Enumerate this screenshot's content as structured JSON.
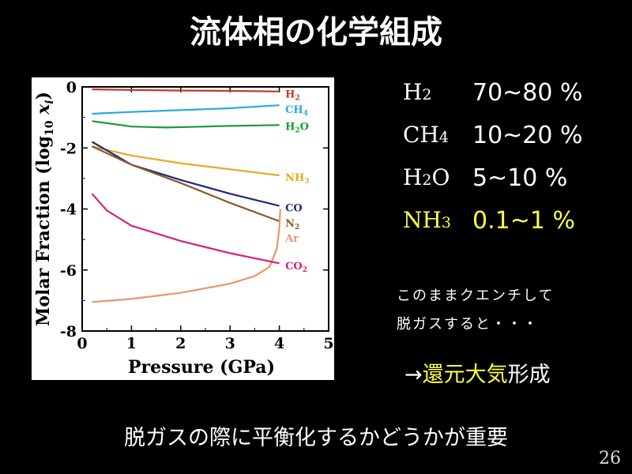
{
  "slide": {
    "title": "流体相の化学組成",
    "page_number": "26"
  },
  "composition": [
    {
      "base": "H",
      "sub": "2",
      "tail": "",
      "value": "70~80 %",
      "highlight": false
    },
    {
      "base": "CH",
      "sub": "4",
      "tail": "",
      "value": "10~20 %",
      "highlight": false
    },
    {
      "base": "H",
      "sub": "2",
      "tail": "O",
      "value": "5~10 %",
      "highlight": false
    },
    {
      "base": "NH",
      "sub": "3",
      "tail": "",
      "value": "0.1~1 %",
      "highlight": true
    }
  ],
  "notes": {
    "line1": "このままクエンチして",
    "line2": "脱ガスすると・・・"
  },
  "conclusion": {
    "arrow": "→",
    "highlight": "還元大気",
    "rest": "形成"
  },
  "bottom_text": "脱ガスの際に平衡化するかどうかが重要",
  "chart_data": {
    "type": "line",
    "xlabel": "Pressure (GPa)",
    "ylabel_main": "Molar Fraction (log",
    "ylabel_sub": "10",
    "ylabel_var": "x",
    "ylabel_var_sub": "i",
    "ylabel_close": ")",
    "xlim": [
      0,
      5
    ],
    "ylim": [
      -8,
      0
    ],
    "x_ticks": [
      0,
      1,
      2,
      3,
      4,
      5
    ],
    "x_tick_labels": [
      "0",
      "1",
      "2",
      "3",
      "4",
      "5"
    ],
    "y_ticks": [
      0,
      -2,
      -4,
      -6,
      -8
    ],
    "y_tick_labels": [
      "0",
      "-2",
      "-4",
      "-6",
      "-8"
    ],
    "series": [
      {
        "label_base": "H",
        "label_sub": "2",
        "label_tail": "",
        "color": "#c0392b",
        "points": [
          [
            0.2,
            -0.08
          ],
          [
            1,
            -0.1
          ],
          [
            2,
            -0.12
          ],
          [
            3,
            -0.13
          ],
          [
            4,
            -0.15
          ]
        ]
      },
      {
        "label_base": "CH",
        "label_sub": "4",
        "label_tail": "",
        "color": "#29a9e0",
        "points": [
          [
            0.2,
            -0.88
          ],
          [
            1,
            -0.82
          ],
          [
            2,
            -0.76
          ],
          [
            3,
            -0.7
          ],
          [
            4,
            -0.6
          ]
        ]
      },
      {
        "label_base": "H",
        "label_sub": "2",
        "label_tail": "O",
        "color": "#1a9a3a",
        "points": [
          [
            0.2,
            -1.12
          ],
          [
            1,
            -1.3
          ],
          [
            1.7,
            -1.33
          ],
          [
            2.5,
            -1.3
          ],
          [
            3,
            -1.28
          ],
          [
            4,
            -1.25
          ]
        ]
      },
      {
        "label_base": "NH",
        "label_sub": "3",
        "label_tail": "",
        "color": "#e6a820",
        "points": [
          [
            0.2,
            -1.95
          ],
          [
            1,
            -2.25
          ],
          [
            2,
            -2.5
          ],
          [
            3,
            -2.7
          ],
          [
            4,
            -2.9
          ]
        ]
      },
      {
        "label_base": "CO",
        "label_sub": "",
        "label_tail": "",
        "color": "#1e2a78",
        "points": [
          [
            0.2,
            -1.8
          ],
          [
            1,
            -2.55
          ],
          [
            2,
            -3.05
          ],
          [
            3,
            -3.5
          ],
          [
            4,
            -3.9
          ]
        ]
      },
      {
        "label_base": "N",
        "label_sub": "2",
        "label_tail": "",
        "color": "#8b5a2b",
        "points": [
          [
            0.2,
            -1.95
          ],
          [
            1,
            -2.55
          ],
          [
            2,
            -3.15
          ],
          [
            3,
            -3.8
          ],
          [
            4,
            -4.4
          ]
        ]
      },
      {
        "label_base": "Ar",
        "label_sub": "",
        "label_tail": "",
        "color": "#e8956a",
        "points": [
          [
            0.2,
            -7.05
          ],
          [
            1,
            -6.95
          ],
          [
            2,
            -6.75
          ],
          [
            3,
            -6.45
          ],
          [
            3.5,
            -6.2
          ],
          [
            3.8,
            -5.9
          ],
          [
            3.95,
            -5.3
          ],
          [
            4.0,
            -4.6
          ],
          [
            4.02,
            -4.0
          ]
        ]
      },
      {
        "label_base": "CO",
        "label_sub": "2",
        "label_tail": "",
        "color": "#d6247a",
        "points": [
          [
            0.2,
            -3.5
          ],
          [
            0.5,
            -4.05
          ],
          [
            1,
            -4.55
          ],
          [
            2,
            -5.05
          ],
          [
            3,
            -5.45
          ],
          [
            4,
            -5.78
          ]
        ]
      }
    ]
  }
}
